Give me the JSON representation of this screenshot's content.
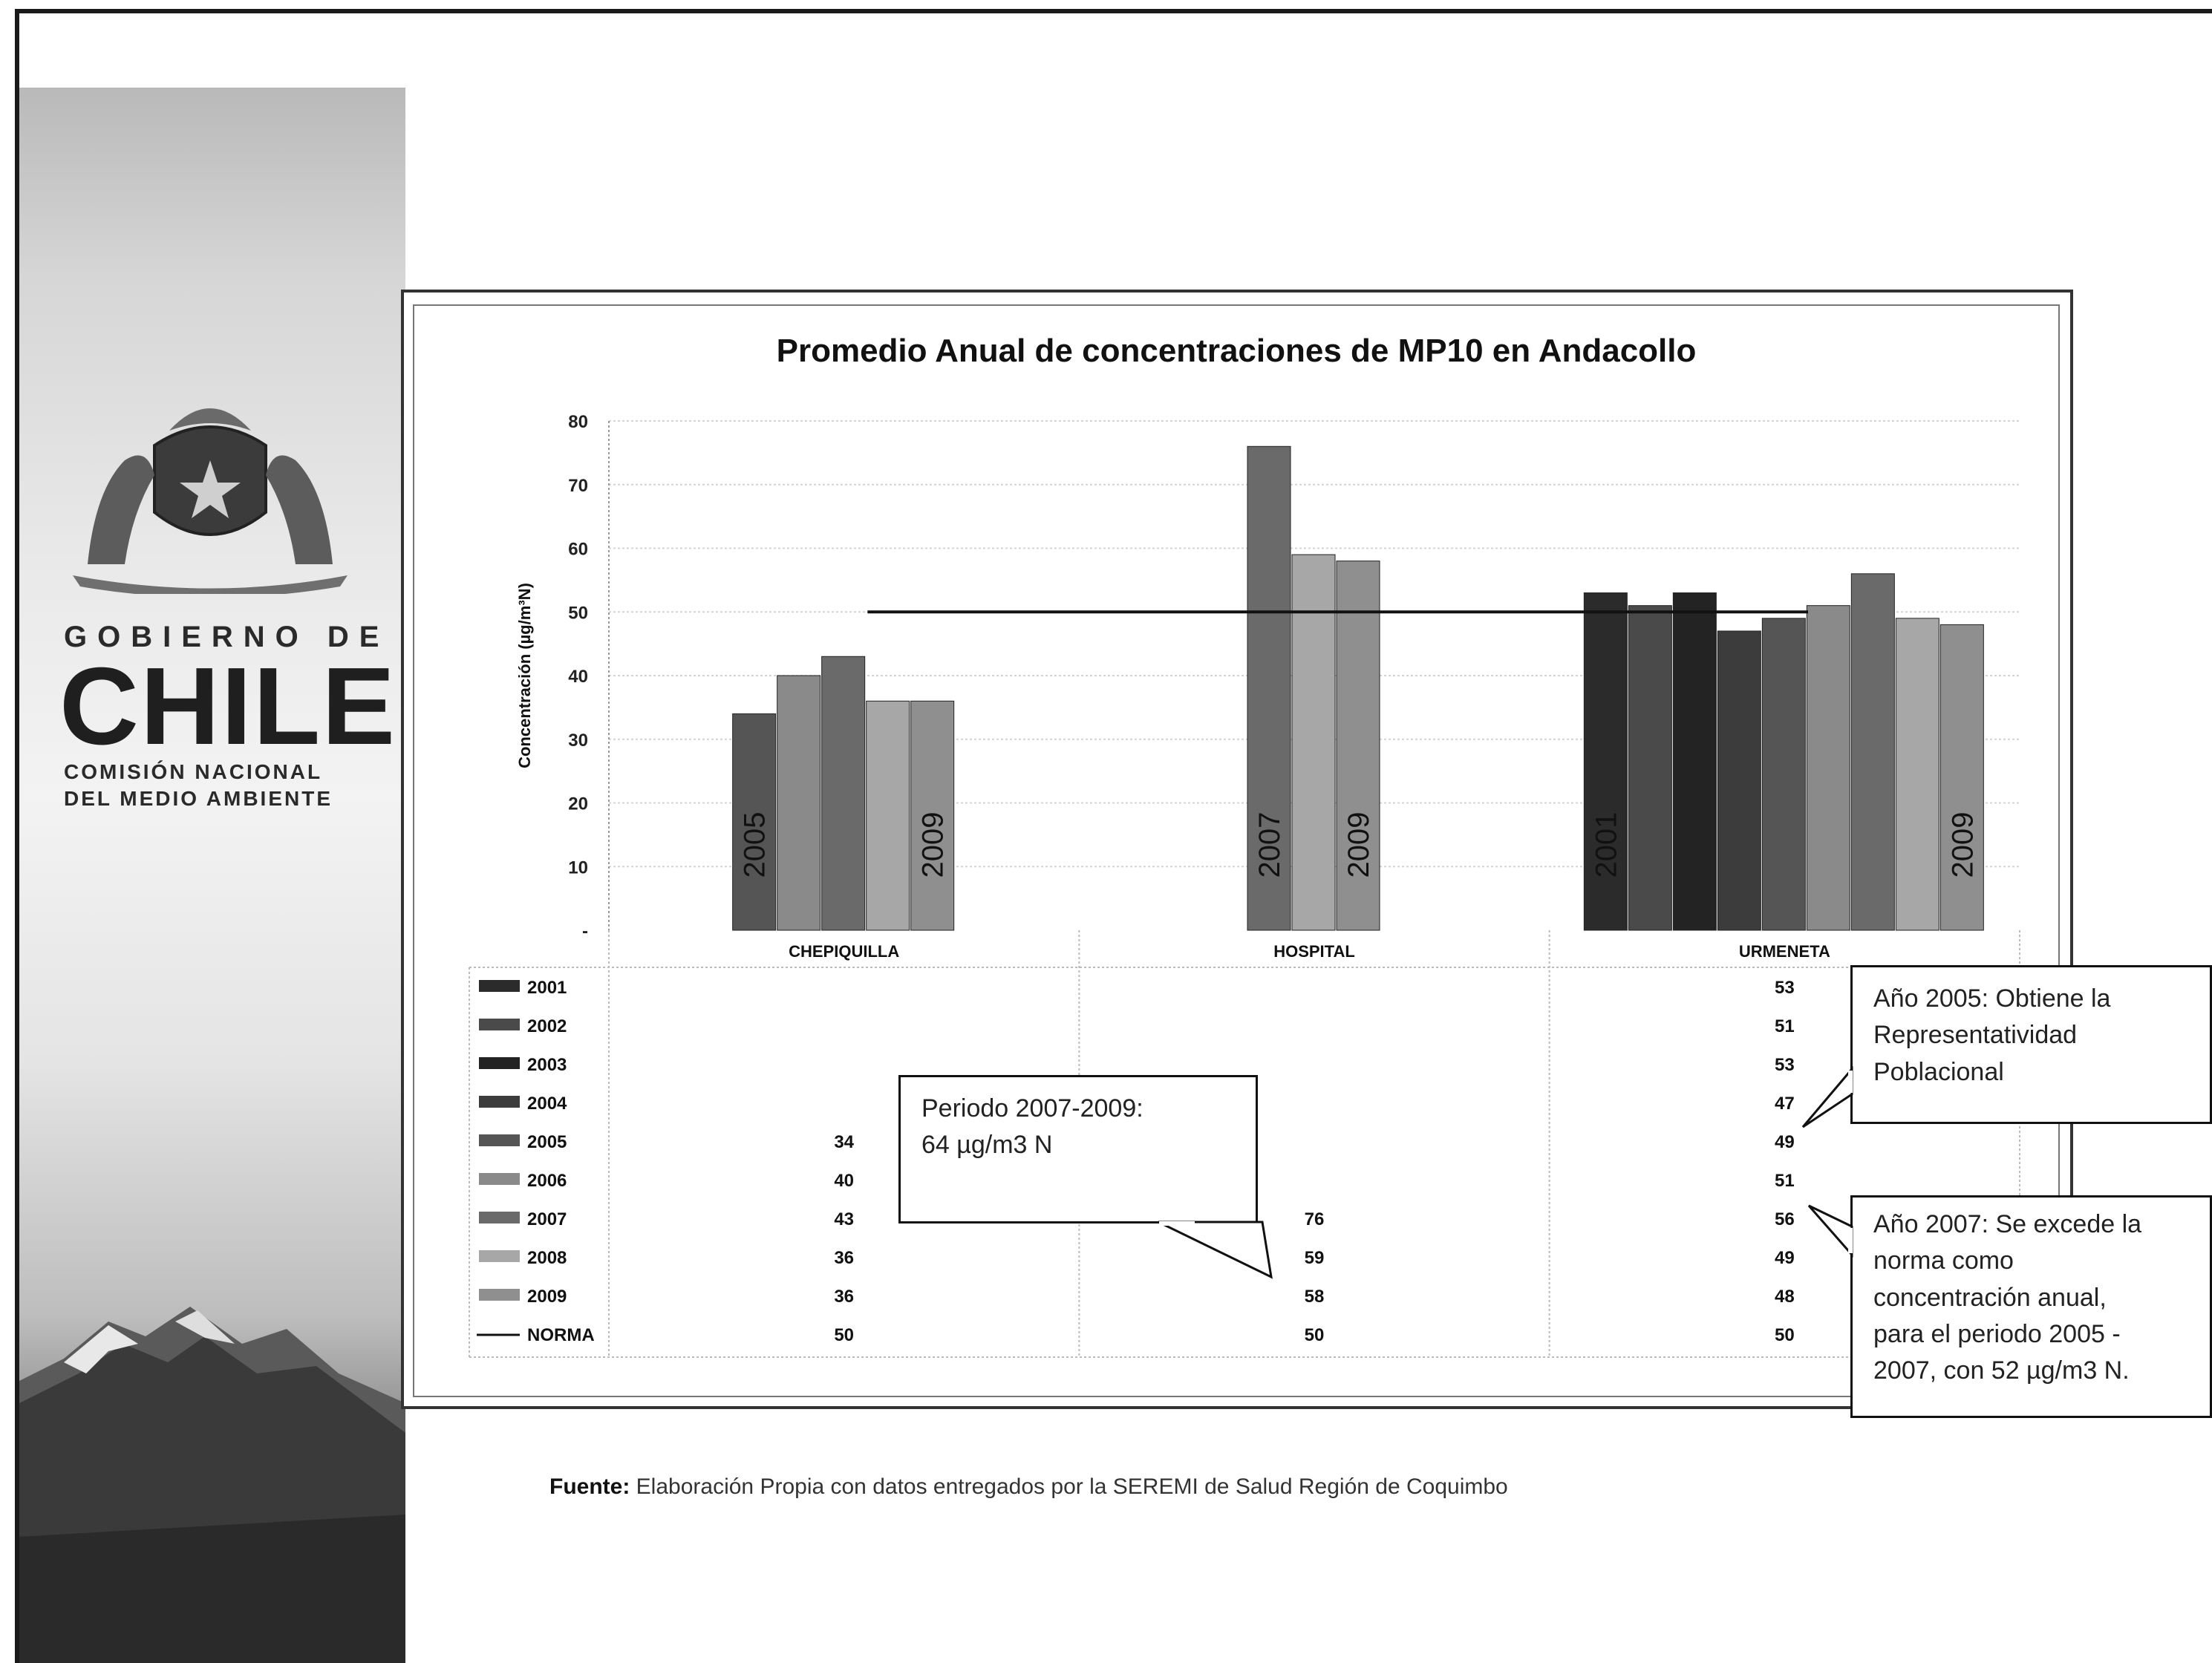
{
  "branding": {
    "gobierno": "GOBIERNO DE",
    "chile": "CHILE",
    "conama_line1": "COMISIÓN NACIONAL",
    "conama_line2": "DEL MEDIO AMBIENTE"
  },
  "chart_data": {
    "type": "bar",
    "title": "Promedio Anual de concentraciones de MP10 en Andacollo",
    "ylabel": "Concentración (µg/m³N)",
    "xlabel": "",
    "ylim": [
      0,
      80
    ],
    "yticks": [
      "-",
      "10",
      "20",
      "30",
      "40",
      "50",
      "60",
      "70",
      "80"
    ],
    "categories": [
      "CHEPIQUILLA",
      "HOSPITAL",
      "URMENETA"
    ],
    "series": [
      {
        "name": "2001",
        "color": "#2b2b2b",
        "values": [
          null,
          null,
          53
        ]
      },
      {
        "name": "2002",
        "color": "#4a4a4a",
        "values": [
          null,
          null,
          51
        ]
      },
      {
        "name": "2003",
        "color": "#232323",
        "values": [
          null,
          null,
          53
        ]
      },
      {
        "name": "2004",
        "color": "#3c3c3c",
        "values": [
          null,
          null,
          47
        ]
      },
      {
        "name": "2005",
        "color": "#555555",
        "values": [
          34,
          null,
          49
        ]
      },
      {
        "name": "2006",
        "color": "#8a8a8a",
        "values": [
          40,
          null,
          51
        ]
      },
      {
        "name": "2007",
        "color": "#6a6a6a",
        "values": [
          43,
          76,
          56
        ]
      },
      {
        "name": "2008",
        "color": "#a7a7a7",
        "values": [
          36,
          59,
          49
        ]
      },
      {
        "name": "2009",
        "color": "#8f8f8f",
        "values": [
          36,
          58,
          48
        ]
      }
    ],
    "norma": {
      "name": "NORMA",
      "values": [
        50,
        50,
        50
      ]
    },
    "bar_labels": [
      {
        "category": "CHEPIQUILLA",
        "series": "2005",
        "text": "2005"
      },
      {
        "category": "CHEPIQUILLA",
        "series": "2009",
        "text": "2009"
      },
      {
        "category": "HOSPITAL",
        "series": "2007",
        "text": "2007"
      },
      {
        "category": "HOSPITAL",
        "series": "2009",
        "text": "2009"
      },
      {
        "category": "URMENETA",
        "series": "2001",
        "text": "2001"
      },
      {
        "category": "URMENETA",
        "series": "2009",
        "text": "2009"
      }
    ],
    "grid": true,
    "legend": "data table below chart"
  },
  "callouts": {
    "periodo": {
      "line1": "Periodo 2007-2009:",
      "line2": "64 µg/m3 N"
    },
    "ano2005": {
      "line1": "Año 2005: Obtiene la",
      "line2": "Representatividad",
      "line3": "Poblacional"
    },
    "ano2007": {
      "line1": "Año 2007: Se excede la",
      "line2": "norma como",
      "line3": "concentración anual,",
      "line4": "para el periodo 2005 -",
      "line5": "2007, con  52 µg/m3 N."
    }
  },
  "fuente": {
    "label": "Fuente:",
    "text": "Elaboración Propia con datos entregados por la SEREMI de Salud Región de Coquimbo"
  }
}
